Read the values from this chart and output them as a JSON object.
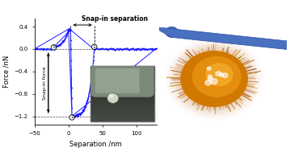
{
  "title": "Snap-in separation",
  "xlabel": "Separation /nm",
  "ylabel": "Force /nN",
  "xlim": [
    -50,
    130
  ],
  "ylim": [
    -1.35,
    0.55
  ],
  "yticks": [
    -1.2,
    -0.8,
    -0.4,
    0.0,
    0.4
  ],
  "xticks": [
    -50,
    0,
    50,
    100
  ],
  "line_color": "#1a1aff",
  "snap_in_sep_x1": 3,
  "snap_in_sep_x2": 38,
  "snap_in_sep_y": 0.43,
  "point1_x": 38,
  "point1_y": 0.04,
  "point2_x": 5,
  "point2_y": -1.22,
  "point3_x": -22,
  "point3_y": 0.03,
  "bg_color": "#ffffff",
  "right_panel_bg": "#000000",
  "cantilever_color": "#4a70c0",
  "bact_color_outer": "#c87000",
  "bact_color_inner": "#e89010",
  "bact_color_bright": "#f0b030",
  "spike_color": "#a05000"
}
